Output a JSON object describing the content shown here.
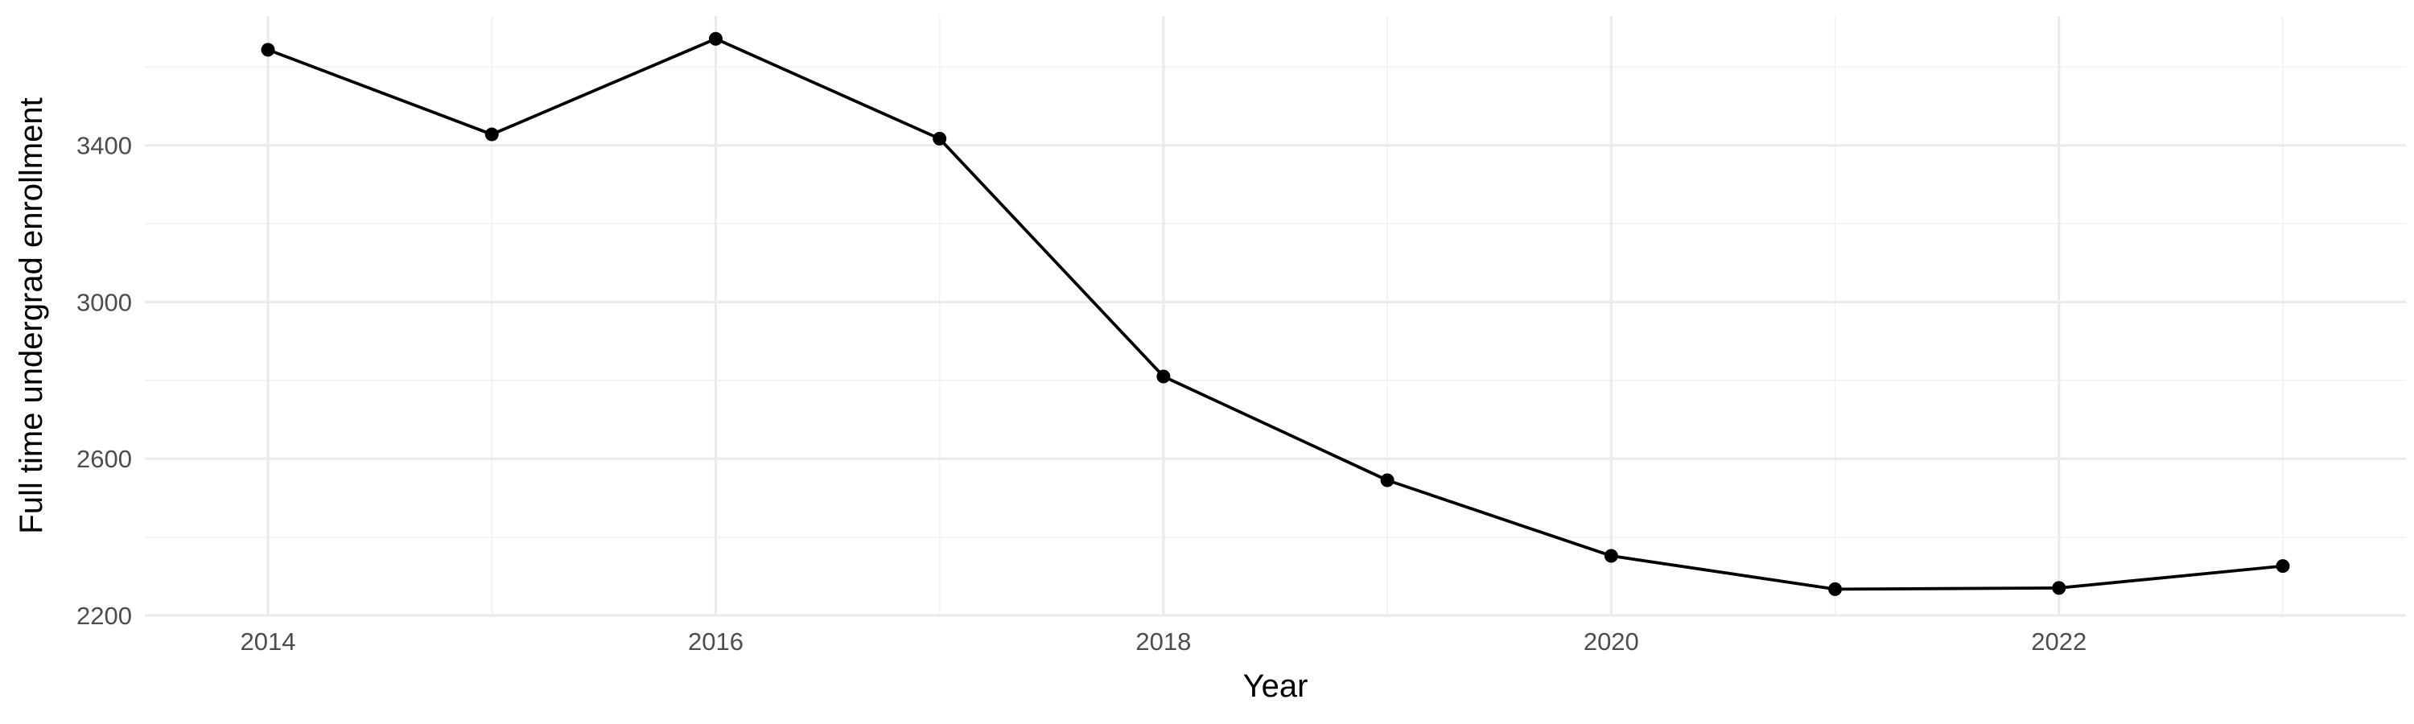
{
  "chart_data": {
    "type": "line",
    "title": "",
    "xlabel": "Year",
    "ylabel": "Full time undergrad enrollment",
    "x": [
      2014,
      2015,
      2016,
      2017,
      2018,
      2019,
      2020,
      2021,
      2022,
      2023
    ],
    "series": [
      {
        "values": [
          3644,
          3428,
          3672,
          3417,
          2810,
          2545,
          2352,
          2267,
          2270,
          2326
        ]
      }
    ],
    "xlim": [
      2013.45,
      2023.55
    ],
    "ylim": [
      2200,
      3730
    ],
    "x_ticks": [
      2014,
      2016,
      2018,
      2020,
      2022
    ],
    "x_tick_labels": [
      "2014",
      "2016",
      "2018",
      "2020",
      "2022"
    ],
    "y_ticks": [
      2200,
      2600,
      3000,
      3400
    ],
    "y_tick_labels": [
      "2200",
      "2600",
      "3000",
      "3400"
    ],
    "grid": true,
    "legend": "none",
    "colors": {
      "line": "#000000",
      "point": "#000000",
      "grid_major": "#ebebeb",
      "grid_minor": "#f2f2f2"
    }
  }
}
